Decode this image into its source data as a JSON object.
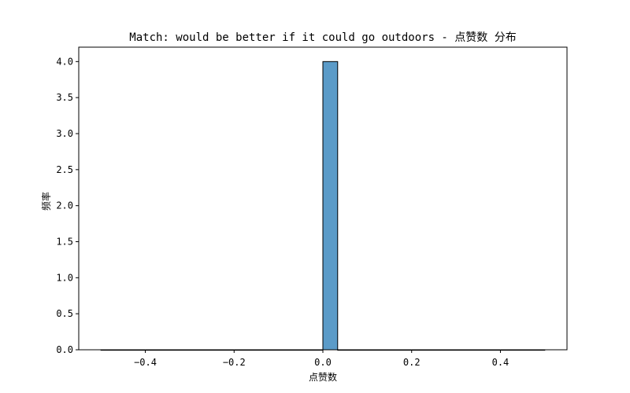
{
  "chart_data": {
    "type": "bar",
    "title": "Match: would be better if it could go outdoors - 点赞数 分布",
    "xlabel": "点赞数",
    "ylabel": "频率",
    "xlim": [
      -0.55,
      0.55
    ],
    "ylim": [
      0,
      4.2
    ],
    "x_ticks": [
      -0.4,
      -0.2,
      0.0,
      0.2,
      0.4
    ],
    "x_tick_labels": [
      "−0.4",
      "−0.2",
      "0.0",
      "0.2",
      "0.4"
    ],
    "y_ticks": [
      0,
      0.5,
      1.0,
      1.5,
      2.0,
      2.5,
      3.0,
      3.5,
      4.0
    ],
    "y_tick_labels": [
      "0.0",
      "0.5",
      "1.0",
      "1.5",
      "2.0",
      "2.5",
      "3.0",
      "3.5",
      "4.0"
    ],
    "bins": [
      {
        "x0": -0.5,
        "x1": 0.0,
        "count": 0
      },
      {
        "x0": 0.0,
        "x1": 0.0333,
        "count": 4
      },
      {
        "x0": 0.0333,
        "x1": 0.5,
        "count": 0
      }
    ],
    "bar_color": "#5b9bc8",
    "edge_color": "#000000",
    "grid": false,
    "legend": "none"
  }
}
